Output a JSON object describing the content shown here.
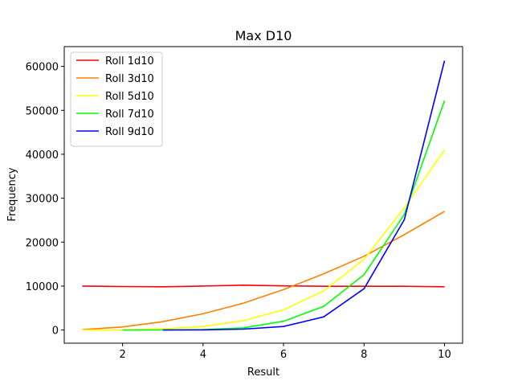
{
  "chart_data": {
    "type": "line",
    "title": "Max D10",
    "xlabel": "Result",
    "ylabel": "Frequency",
    "xlim": [
      0.55,
      10.45
    ],
    "ylim": [
      -3000,
      64500
    ],
    "xticks": [
      2,
      4,
      6,
      8,
      10
    ],
    "yticks": [
      0,
      10000,
      20000,
      30000,
      40000,
      50000,
      60000
    ],
    "legend_position": "top-left",
    "grid": false,
    "series": [
      {
        "name": "Roll 1d10",
        "color": "#ff0000",
        "x": [
          1,
          2,
          3,
          4,
          5,
          6,
          7,
          8,
          9,
          10
        ],
        "values": [
          10000,
          9900,
          9850,
          10000,
          10200,
          10050,
          9950,
          9950,
          9950,
          9850
        ]
      },
      {
        "name": "Roll 3d10",
        "color": "#ff7f00",
        "x": [
          1,
          2,
          3,
          4,
          5,
          6,
          7,
          8,
          9,
          10
        ],
        "values": [
          100,
          700,
          1900,
          3700,
          6100,
          9200,
          12800,
          16800,
          21700,
          27000
        ]
      },
      {
        "name": "Roll 5d10",
        "color": "#ffff00",
        "x": [
          1,
          2,
          3,
          4,
          5,
          6,
          7,
          8,
          9,
          10
        ],
        "values": [
          0,
          0,
          250,
          800,
          2100,
          4600,
          8900,
          16100,
          27800,
          41000
        ]
      },
      {
        "name": "Roll 7d10",
        "color": "#00ff00",
        "x": [
          2,
          3,
          4,
          5,
          6,
          7,
          8,
          9,
          10
        ],
        "values": [
          0,
          20,
          100,
          500,
          2000,
          5400,
          12600,
          26300,
          52200
        ]
      },
      {
        "name": "Roll 9d10",
        "color": "#0000ff",
        "x": [
          3,
          4,
          5,
          6,
          7,
          8,
          9,
          10
        ],
        "values": [
          0,
          20,
          200,
          800,
          3000,
          9400,
          25100,
          61300
        ]
      }
    ]
  }
}
